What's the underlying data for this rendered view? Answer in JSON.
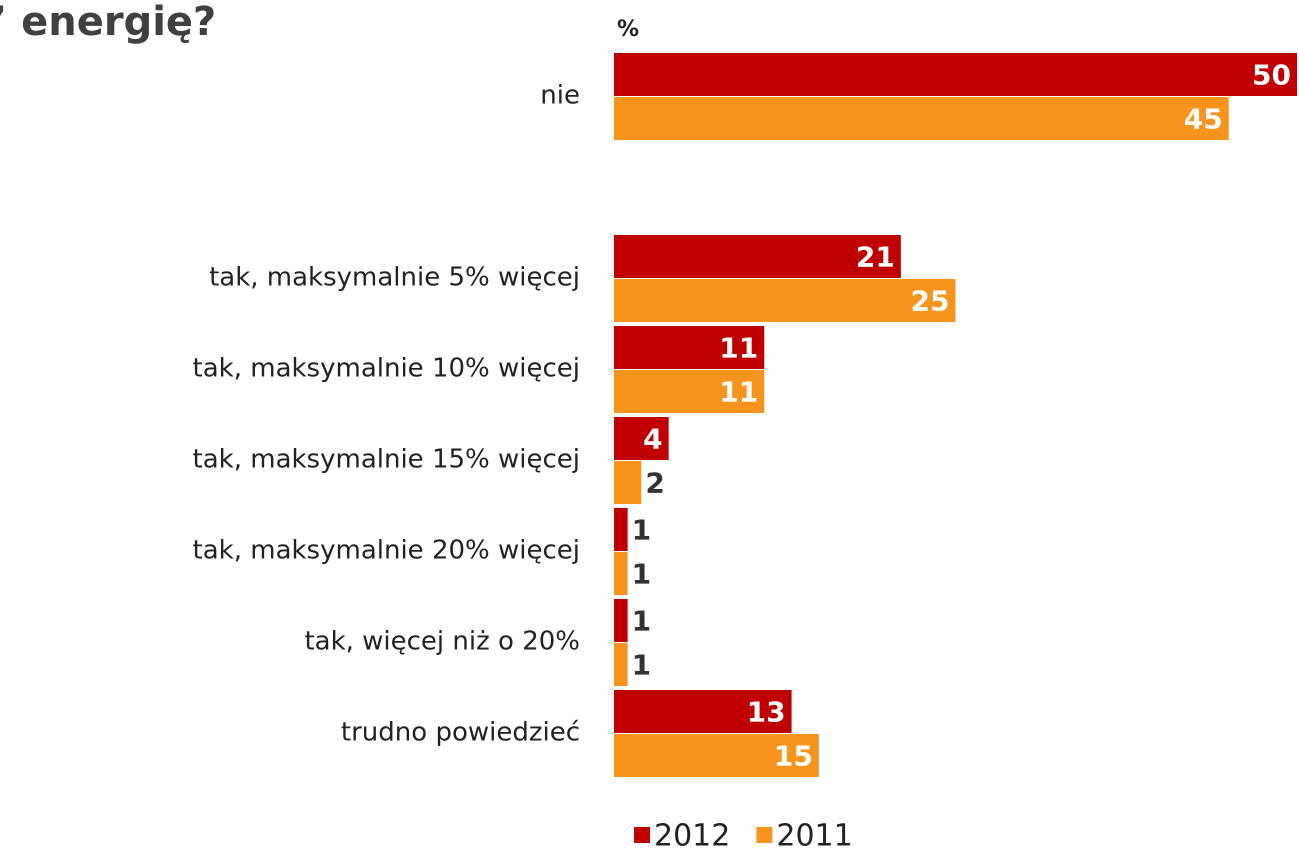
{
  "chart_data": {
    "type": "bar",
    "orientation": "horizontal",
    "title": "’ energię?",
    "unit_label": "%",
    "categories": [
      "nie",
      null,
      "tak, maksymalnie 5% więcej",
      "tak, maksymalnie 10% więcej",
      "tak, maksymalnie 15% więcej",
      "tak, maksymalnie 20% więcej",
      "tak, więcej niż o 20%",
      "trudno powiedzieć"
    ],
    "series": [
      {
        "name": "2012",
        "color": "#c00000",
        "values": [
          50,
          null,
          21,
          11,
          4,
          1,
          1,
          13
        ]
      },
      {
        "name": "2011",
        "color": "#f7941d",
        "values": [
          45,
          null,
          25,
          11,
          2,
          1,
          1,
          15
        ]
      }
    ],
    "legend": "bottom"
  }
}
